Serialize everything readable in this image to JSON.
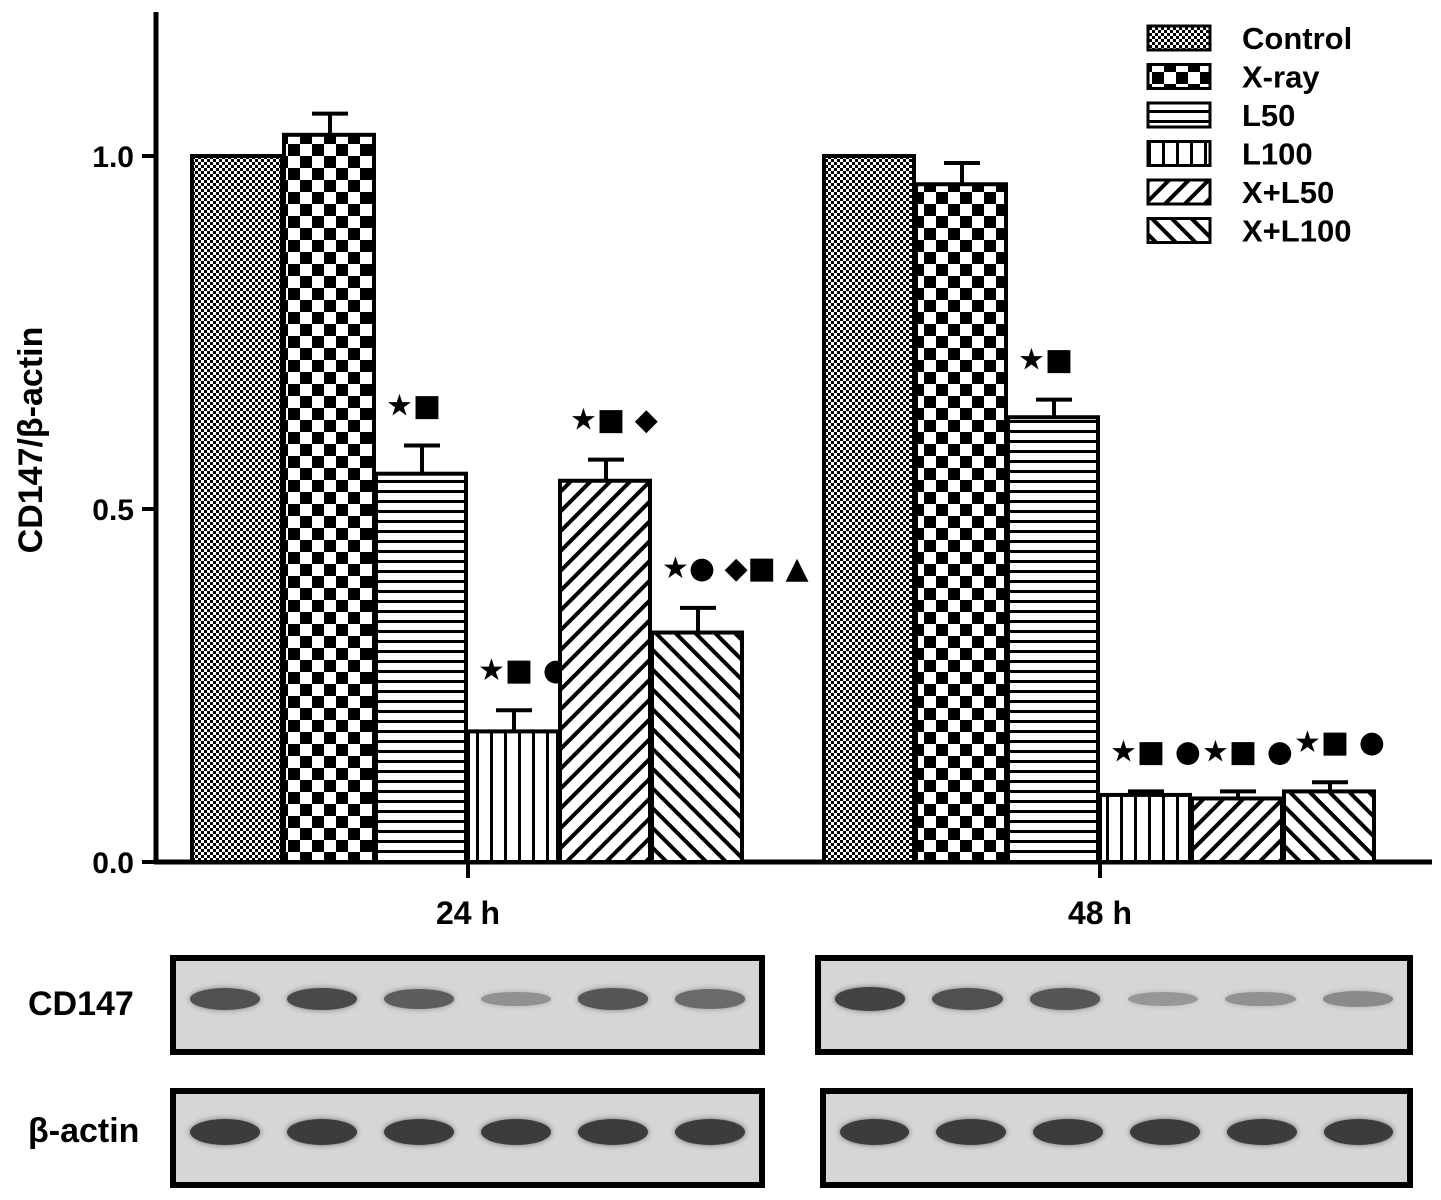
{
  "chart_data": {
    "type": "bar",
    "ylabel": "CD147/β-actin",
    "ylim": [
      0,
      1.2
    ],
    "yticks": [
      "0.0",
      "0.5",
      "1.0"
    ],
    "categories": [
      "24 h",
      "48 h"
    ],
    "series": [
      {
        "name": "Control",
        "values": [
          1.0,
          1.0
        ],
        "errors": [
          0,
          0
        ],
        "markers": [
          "",
          ""
        ]
      },
      {
        "name": "X-ray",
        "values": [
          1.03,
          0.96
        ],
        "errors": [
          0.03,
          0.03
        ],
        "markers": [
          "",
          ""
        ]
      },
      {
        "name": "L50",
        "values": [
          0.55,
          0.63
        ],
        "errors": [
          0.04,
          0.025
        ],
        "markers": [
          "★■",
          "★■"
        ]
      },
      {
        "name": "L100",
        "values": [
          0.185,
          0.095
        ],
        "errors": [
          0.03,
          0.005
        ],
        "markers": [
          "★■ ●",
          "★■ ●"
        ]
      },
      {
        "name": "X+L50",
        "values": [
          0.54,
          0.09
        ],
        "errors": [
          0.03,
          0.01
        ],
        "markers": [
          "★■ ◆",
          "★■ ●"
        ]
      },
      {
        "name": "X+L100",
        "values": [
          0.325,
          0.1
        ],
        "errors": [
          0.035,
          0.013
        ],
        "markers": [
          "★● ◆■ ▲",
          "★■ ●"
        ]
      }
    ],
    "legend_position": "top-right"
  },
  "blots": {
    "rows": [
      "CD147",
      "β-actin"
    ],
    "cd147_intensity": [
      [
        0.85,
        0.9,
        0.75,
        0.35,
        0.8,
        0.65
      ],
      [
        0.95,
        0.85,
        0.8,
        0.3,
        0.35,
        0.4
      ]
    ],
    "actin_intensity": [
      [
        1,
        1,
        1,
        1,
        1,
        1
      ],
      [
        1,
        1,
        1,
        1,
        1,
        1
      ]
    ]
  }
}
